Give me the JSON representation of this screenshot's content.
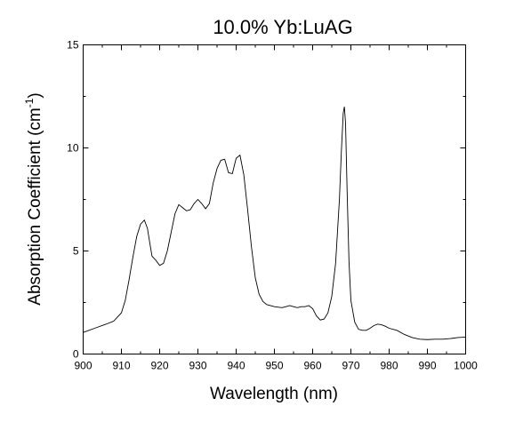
{
  "chart_data": {
    "type": "line",
    "title": "10.0% Yb:LuAG",
    "xlabel": "Wavelength (nm)",
    "ylabel_main": "Absorption Coefficient (cm",
    "ylabel_sup": "-1",
    "ylabel_close": ")",
    "xlim": [
      900,
      1000
    ],
    "ylim": [
      0,
      15
    ],
    "x_major_ticks": [
      900,
      910,
      920,
      930,
      940,
      950,
      960,
      970,
      980,
      990,
      1000
    ],
    "y_major_ticks": [
      0,
      5,
      10,
      15
    ],
    "x_minor_step": 5,
    "y_minor_step": 2.5,
    "grid": false,
    "series": [
      {
        "color": "#000000",
        "x": [
          900,
          903,
          906,
          908,
          910,
          911,
          912,
          913,
          914,
          915,
          916,
          916.8,
          917.5,
          918,
          919,
          920,
          921,
          922,
          923,
          924,
          925,
          926,
          927,
          928,
          929,
          930,
          931,
          932,
          933,
          934,
          935,
          936,
          937,
          938,
          939,
          940,
          941,
          942,
          943,
          944,
          945,
          946,
          947,
          948,
          950,
          952,
          953,
          954,
          955,
          956,
          957,
          958,
          959,
          960,
          961,
          962,
          963,
          964,
          965,
          966,
          967,
          967.5,
          968,
          968.3,
          968.6,
          969,
          969.5,
          970,
          971,
          972,
          973,
          974,
          975,
          976,
          977,
          978,
          979,
          980,
          982,
          984,
          986,
          988,
          990,
          992,
          994,
          996,
          998,
          1000
        ],
        "y": [
          1.05,
          1.25,
          1.45,
          1.6,
          2.0,
          2.6,
          3.6,
          4.7,
          5.7,
          6.3,
          6.5,
          6.1,
          5.3,
          4.75,
          4.55,
          4.3,
          4.4,
          5.0,
          5.9,
          6.8,
          7.25,
          7.1,
          6.95,
          7.0,
          7.3,
          7.5,
          7.3,
          7.05,
          7.3,
          8.3,
          9.0,
          9.4,
          9.45,
          8.8,
          8.75,
          9.5,
          9.65,
          8.7,
          7.0,
          5.2,
          3.7,
          2.9,
          2.55,
          2.4,
          2.3,
          2.25,
          2.3,
          2.35,
          2.3,
          2.25,
          2.3,
          2.3,
          2.35,
          2.2,
          1.85,
          1.65,
          1.7,
          2.0,
          2.8,
          4.4,
          7.5,
          9.8,
          11.7,
          12.0,
          11.2,
          8.0,
          4.5,
          2.6,
          1.55,
          1.2,
          1.15,
          1.15,
          1.25,
          1.38,
          1.45,
          1.42,
          1.35,
          1.25,
          1.15,
          0.95,
          0.8,
          0.72,
          0.7,
          0.72,
          0.72,
          0.75,
          0.8,
          0.82
        ]
      }
    ]
  }
}
